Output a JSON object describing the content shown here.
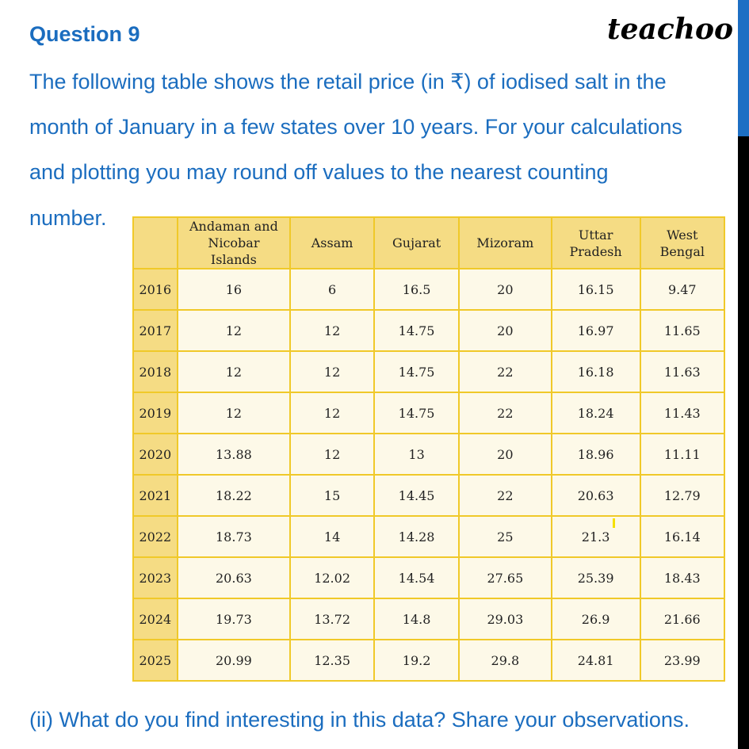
{
  "question": {
    "title": "Question 9",
    "lines": [
      "The following table shows the retail price (in ₹) of iodised salt in the",
      "month of January in a few states over 10 years. For your calculations",
      "and plotting you may round off values to the nearest counting",
      "number."
    ],
    "sub_question": "(ii) What do you find interesting in this data? Share your observations."
  },
  "logo": "teachoo",
  "colors": {
    "text": "#1b6dbf",
    "header_bg": "#f5dc84",
    "cell_bg": "#fdf9e8",
    "border": "#f0c929"
  },
  "table": {
    "headers": [
      "",
      "Andaman and Nicobar Islands",
      "Assam",
      "Gujarat",
      "Mizoram",
      "Uttar Pradesh",
      "West Bengal"
    ],
    "rows": [
      [
        "2016",
        "16",
        "6",
        "16.5",
        "20",
        "16.15",
        "9.47"
      ],
      [
        "2017",
        "12",
        "12",
        "14.75",
        "20",
        "16.97",
        "11.65"
      ],
      [
        "2018",
        "12",
        "12",
        "14.75",
        "22",
        "16.18",
        "11.63"
      ],
      [
        "2019",
        "12",
        "12",
        "14.75",
        "22",
        "18.24",
        "11.43"
      ],
      [
        "2020",
        "13.88",
        "12",
        "13",
        "20",
        "18.96",
        "11.11"
      ],
      [
        "2021",
        "18.22",
        "15",
        "14.45",
        "22",
        "20.63",
        "12.79"
      ],
      [
        "2022",
        "18.73",
        "14",
        "14.28",
        "25",
        "21.3",
        "16.14"
      ],
      [
        "2023",
        "20.63",
        "12.02",
        "14.54",
        "27.65",
        "25.39",
        "18.43"
      ],
      [
        "2024",
        "19.73",
        "13.72",
        "14.8",
        "29.03",
        "26.9",
        "21.66"
      ],
      [
        "2025",
        "20.99",
        "12.35",
        "19.2",
        "29.8",
        "24.81",
        "23.99"
      ]
    ]
  }
}
